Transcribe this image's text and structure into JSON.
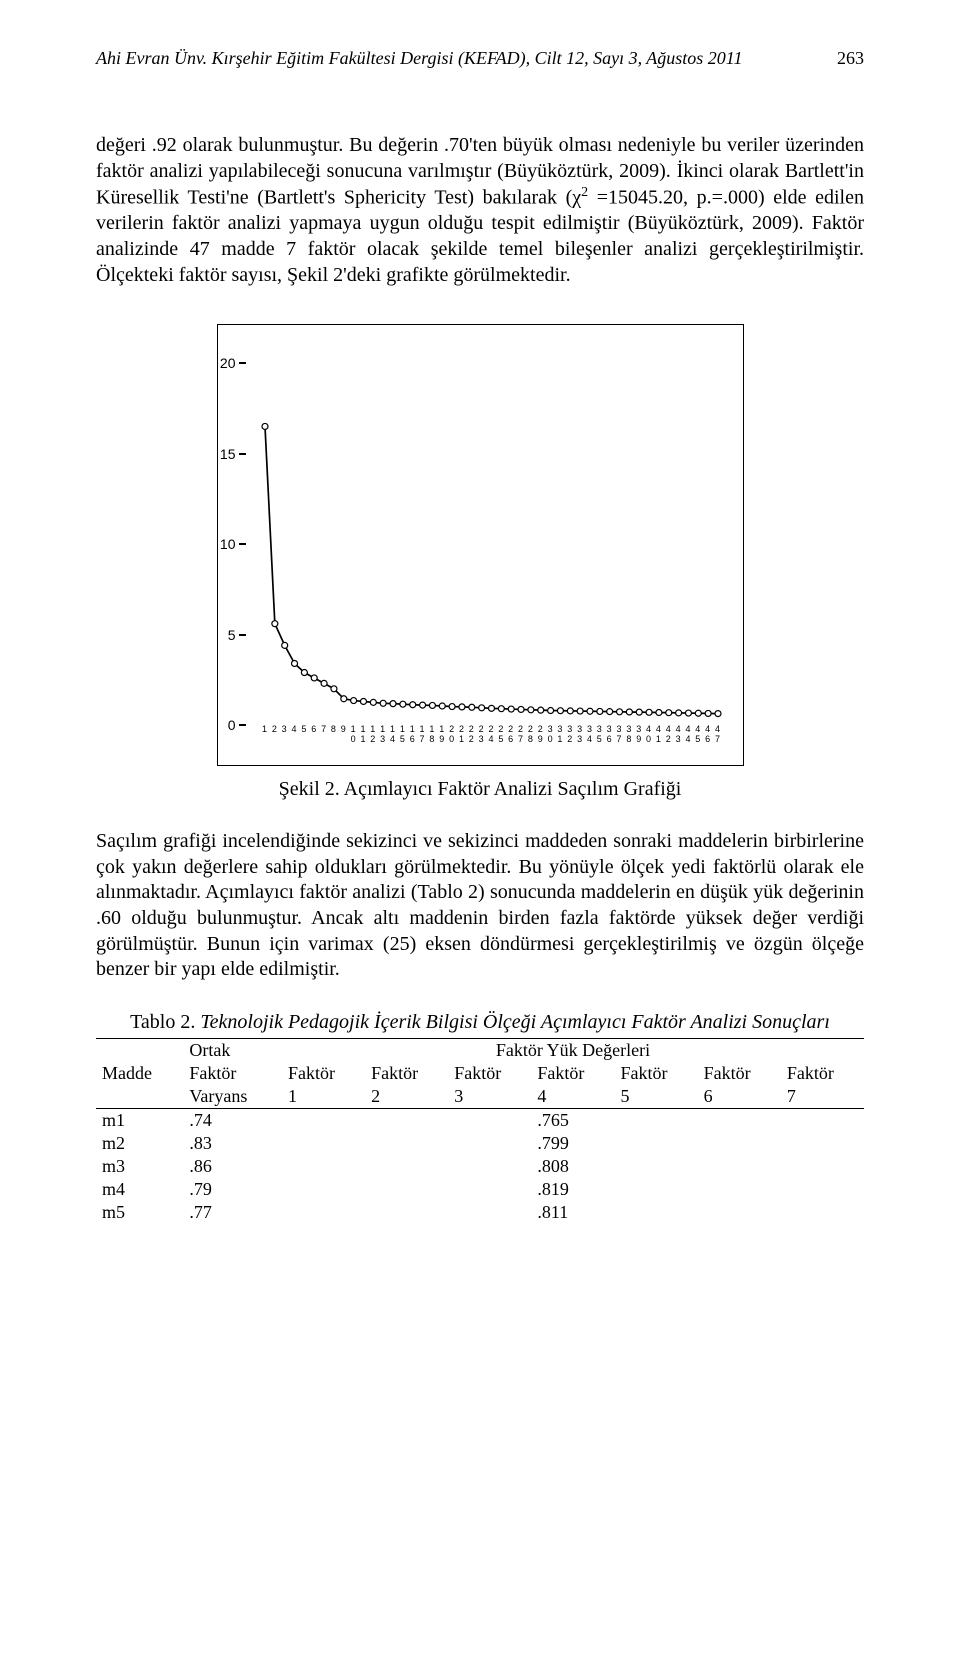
{
  "page": {
    "running_header": "Ahi Evran Ünv. Kırşehir Eğitim Fakültesi Dergisi (KEFAD), Cilt 12, Sayı 3, Ağustos 2011",
    "page_number": "263"
  },
  "para1": {
    "t1": "değeri .92 olarak bulunmuştur. Bu değerin .70'ten büyük olması nedeniyle bu veriler üzerinden faktör analizi yapılabileceği sonucuna varılmıştır (Büyüköztürk, 2009). İkinci olarak Bartlett'in Küresellik Testi'ne (Bartlett's Sphericity Test) bakılarak (χ",
    "t2": " =15045.20, p.=.000) elde edilen verilerin faktör analizi yapmaya uygun olduğu tespit edilmiştir (Büyüköztürk, 2009). Faktör analizinde 47 madde 7 faktör olacak şekilde temel bileşenler analizi gerçekleştirilmiştir. Ölçekteki faktör sayısı, Şekil 2'deki grafikte görülmektedir."
  },
  "chart": {
    "type": "scree-line",
    "y_ticks": [
      0,
      5,
      10,
      15,
      20
    ],
    "ymin": 0,
    "ymax": 21,
    "x_count": 47,
    "x_labels_top": [
      "1",
      "2",
      "3",
      "4",
      "5",
      "6",
      "7",
      "8",
      "9",
      "1",
      "1",
      "1",
      "1",
      "1",
      "1",
      "1",
      "1",
      "1",
      "1",
      "2",
      "2",
      "2",
      "2",
      "2",
      "2",
      "2",
      "2",
      "2",
      "2",
      "3",
      "3",
      "3",
      "3",
      "3",
      "3",
      "3",
      "3",
      "3",
      "3",
      "4",
      "4",
      "4",
      "4",
      "4",
      "4",
      "4",
      "4"
    ],
    "x_labels_bottom": [
      "",
      "",
      "",
      "",
      "",
      "",
      "",
      "",
      "",
      "0",
      "1",
      "2",
      "3",
      "4",
      "5",
      "6",
      "7",
      "8",
      "9",
      "0",
      "1",
      "2",
      "3",
      "4",
      "5",
      "6",
      "7",
      "8",
      "9",
      "0",
      "1",
      "2",
      "3",
      "4",
      "5",
      "6",
      "7",
      "8",
      "9",
      "0",
      "1",
      "2",
      "3",
      "4",
      "5",
      "6",
      "7"
    ],
    "values": [
      16.5,
      5.6,
      4.4,
      3.4,
      2.9,
      2.6,
      2.3,
      2.0,
      1.45,
      1.35,
      1.3,
      1.25,
      1.2,
      1.18,
      1.15,
      1.12,
      1.1,
      1.08,
      1.05,
      1.02,
      1.0,
      0.98,
      0.95,
      0.92,
      0.9,
      0.88,
      0.86,
      0.84,
      0.82,
      0.8,
      0.79,
      0.78,
      0.77,
      0.76,
      0.75,
      0.74,
      0.73,
      0.72,
      0.71,
      0.7,
      0.69,
      0.68,
      0.67,
      0.66,
      0.65,
      0.64,
      0.63
    ],
    "line_color": "#000000",
    "line_width": 1.7,
    "marker_radius": 3.0,
    "marker_fill": "#ffffff",
    "marker_stroke": "#000000",
    "background_color": "#ffffff",
    "axis_color": "#000000",
    "label_font_family": "Arial",
    "label_fontsize_y": 14,
    "label_fontsize_x": 9
  },
  "chart_caption": "Şekil 2. Açımlayıcı Faktör Analizi Saçılım Grafiği",
  "para2": "Saçılım grafiği incelendiğinde sekizinci ve sekizinci maddeden sonraki maddelerin birbirlerine çok yakın değerlere sahip oldukları görülmektedir. Bu yönüyle ölçek yedi faktörlü olarak ele alınmaktadır. Açımlayıcı faktör analizi (Tablo 2) sonucunda maddelerin en düşük yük değerinin .60 olduğu bulunmuştur. Ancak altı maddenin birden fazla faktörde yüksek değer verdiği görülmüştür. Bunun için varimax (25) eksen döndürmesi gerçekleştirilmiş ve özgün ölçeğe benzer bir yapı elde edilmiştir.",
  "table_caption": {
    "prefix": "Tablo 2. ",
    "italic": "Teknolojik Pedagojik İçerik Bilgisi Ölçeği Açımlayıcı Faktör Analizi Sonuçları"
  },
  "table": {
    "head_row1_c1": "",
    "head_row1_c2": "Ortak",
    "head_row1_span": "Faktör Yük Değerleri",
    "head_row2": [
      "Madde",
      "Faktör",
      "Faktör",
      "Faktör",
      "Faktör",
      "Faktör",
      "Faktör",
      "Faktör",
      "Faktör"
    ],
    "head_row3": [
      "",
      "Varyans",
      "1",
      "2",
      "3",
      "4",
      "5",
      "6",
      "7"
    ],
    "rows": [
      {
        "m": "m1",
        "ov": ".74",
        "v": [
          "",
          "",
          "",
          ".765",
          "",
          "",
          ""
        ]
      },
      {
        "m": "m2",
        "ov": ".83",
        "v": [
          "",
          "",
          "",
          ".799",
          "",
          "",
          ""
        ]
      },
      {
        "m": "m3",
        "ov": ".86",
        "v": [
          "",
          "",
          "",
          ".808",
          "",
          "",
          ""
        ]
      },
      {
        "m": "m4",
        "ov": ".79",
        "v": [
          "",
          "",
          "",
          ".819",
          "",
          "",
          ""
        ]
      },
      {
        "m": "m5",
        "ov": ".77",
        "v": [
          "",
          "",
          "",
          ".811",
          "",
          "",
          ""
        ]
      }
    ]
  }
}
